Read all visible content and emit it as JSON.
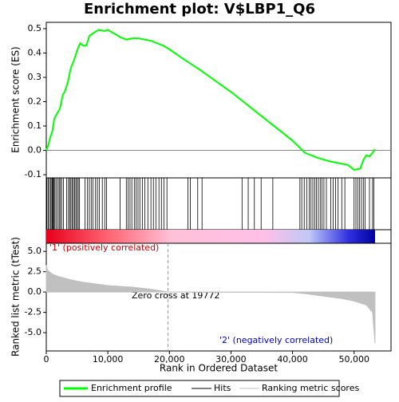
{
  "chart_data": [
    {
      "type": "line",
      "title": "Enrichment plot: V$LBP1_Q6",
      "ylabel": "Enrichment score (ES)",
      "x": [
        0,
        300,
        600,
        1000,
        1300,
        1700,
        2200,
        2700,
        3000,
        3500,
        4000,
        4500,
        5000,
        5500,
        6000,
        6500,
        7000,
        7500,
        8500,
        9500,
        10000,
        11000,
        12000,
        13000,
        14000,
        15000,
        16000,
        17000,
        18000,
        19000,
        20000,
        22000,
        25000,
        30000,
        35000,
        40000,
        42000,
        44000,
        46000,
        47000,
        48000,
        49000,
        50000,
        51000,
        51500,
        52000,
        52500,
        53000,
        53400
      ],
      "series": [
        {
          "name": "Enrichment profile",
          "color": "#00ff00",
          "values": [
            0,
            0.02,
            0.05,
            0.08,
            0.13,
            0.15,
            0.17,
            0.23,
            0.24,
            0.28,
            0.34,
            0.37,
            0.41,
            0.44,
            0.43,
            0.43,
            0.47,
            0.48,
            0.495,
            0.49,
            0.495,
            0.48,
            0.465,
            0.455,
            0.46,
            0.46,
            0.455,
            0.45,
            0.44,
            0.43,
            0.415,
            0.38,
            0.33,
            0.24,
            0.14,
            0.04,
            -0.01,
            -0.03,
            -0.045,
            -0.05,
            -0.055,
            -0.06,
            -0.08,
            -0.075,
            -0.04,
            -0.02,
            -0.025,
            -0.01,
            0.005
          ]
        }
      ],
      "xlim": [
        0,
        56000
      ],
      "ylim": [
        -0.113,
        0.526
      ],
      "yticks": [
        {
          "value": -0.1,
          "label": "-0.1"
        },
        {
          "value": 0,
          "label": "0.0"
        },
        {
          "value": 0.1,
          "label": "0.1"
        },
        {
          "value": 0.2,
          "label": "0.2"
        },
        {
          "value": 0.3,
          "label": "0.3"
        },
        {
          "value": 0.4,
          "label": "0.4"
        },
        {
          "value": 0.5,
          "label": "0.5"
        }
      ]
    },
    {
      "type": "hits",
      "name": "Hits",
      "color": "#000000",
      "x": [
        100,
        300,
        500,
        700,
        900,
        1000,
        1100,
        1250,
        1400,
        1600,
        1900,
        2100,
        2300,
        2500,
        2800,
        3300,
        3600,
        3800,
        4000,
        4200,
        4400,
        4600,
        4800,
        5000,
        5200,
        5400,
        6300,
        6700,
        7000,
        7300,
        7600,
        8000,
        8300,
        8600,
        9100,
        9500,
        9800,
        12000,
        13000,
        13300,
        13600,
        13900,
        14300,
        14600,
        14900,
        15200,
        15600,
        16000,
        16500,
        17000,
        17400,
        17800,
        18300,
        18700,
        19100,
        19600,
        23000,
        23400,
        24600,
        25300,
        31800,
        32800,
        33800,
        34900,
        36800,
        41200,
        41500,
        41900,
        42300,
        42700,
        43000,
        43300,
        43600,
        43900,
        44200,
        44500,
        44800,
        45100,
        45500,
        46200,
        46600,
        47000,
        47400,
        48000,
        48500,
        50000,
        50300,
        50600,
        50900,
        51200,
        51500,
        51800,
        52500,
        53000,
        53200
      ]
    },
    {
      "type": "area",
      "ylabel": "Ranked list metric (tTest)",
      "xlabel": "Rank in Ordered Dataset",
      "x": [
        0,
        200,
        1000,
        2000,
        4000,
        6000,
        8000,
        10000,
        14000,
        17000,
        19772,
        20000,
        40000,
        42000,
        45000,
        48000,
        50000,
        52000,
        53000,
        53400
      ],
      "series": [
        {
          "name": "Ranking metric scores",
          "color": "#c0c0c0",
          "values": [
            3.3,
            2.7,
            2.2,
            1.9,
            1.5,
            1.2,
            1.0,
            0.8,
            0.6,
            0.35,
            0,
            -0.01,
            -0.05,
            -0.2,
            -0.5,
            -0.8,
            -1.1,
            -1.6,
            -2.5,
            -6.3
          ]
        }
      ],
      "xlim": [
        0,
        56000
      ],
      "ylim": [
        -7.25,
        6
      ],
      "xticks": [
        0,
        {
          "value": 10000,
          "label": "10,000"
        },
        {
          "value": 20000,
          "label": "20,000"
        },
        {
          "value": 30000,
          "label": "30,000"
        },
        {
          "value": 40000,
          "label": "40,000"
        },
        {
          "value": 50000,
          "label": "50,000"
        }
      ],
      "yticks": [
        {
          "value": -5,
          "label": "-5.0"
        },
        {
          "value": -2.5,
          "label": "-2.5"
        },
        {
          "value": 0,
          "label": "0.0"
        },
        {
          "value": 2.5,
          "label": "2.5"
        },
        {
          "value": 5,
          "label": "5.0"
        }
      ],
      "annotations": [
        "'1' (positively correlated)",
        "Zero cross at 19772",
        "'2' (negatively correlated)"
      ]
    }
  ]
}
